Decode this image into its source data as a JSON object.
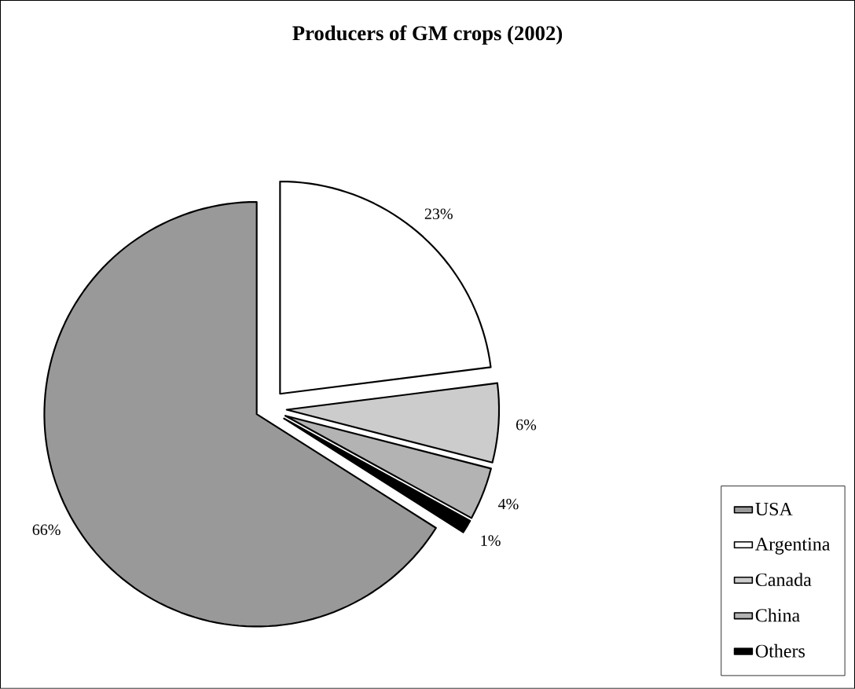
{
  "chart_data": {
    "type": "pie",
    "title": "Producers of GM crops (2002)",
    "categories": [
      "USA",
      "Argentina",
      "Canada",
      "China",
      "Others"
    ],
    "values": [
      66,
      23,
      6,
      4,
      1
    ],
    "value_labels": [
      "66%",
      "23%",
      "6%",
      "4%",
      "1%"
    ],
    "colors": [
      "#999999",
      "#ffffff",
      "#cccccc",
      "#b3b3b3",
      "#000000"
    ],
    "legend": "right"
  }
}
